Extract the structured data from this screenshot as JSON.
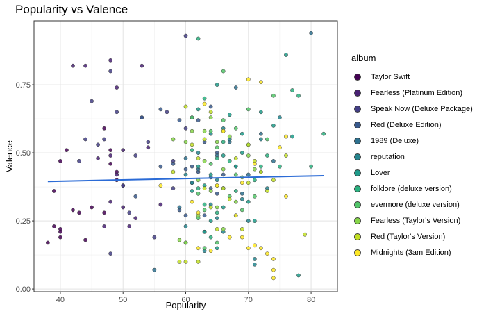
{
  "chart_data": {
    "type": "scatter",
    "title": "Popularity vs Valence",
    "xlabel": "Popularity",
    "ylabel": "Valence",
    "xlim": [
      35.8,
      84.2
    ],
    "ylim": [
      -0.01,
      0.985
    ],
    "xticks": [
      40,
      50,
      60,
      70,
      80
    ],
    "yticks": [
      0.0,
      0.25,
      0.5,
      0.75
    ],
    "ytick_labels": [
      "0.00",
      "0.25",
      "0.50",
      "0.75"
    ],
    "grid": true,
    "legend_title": "album",
    "legend_position": "right",
    "trend_line": {
      "x": [
        38,
        82
      ],
      "y": [
        0.395,
        0.416
      ],
      "color": "#2b6bd6"
    },
    "series": [
      {
        "name": "Taylor Swift",
        "color": "#440154",
        "points": [
          [
            38,
            0.17
          ],
          [
            39,
            0.36
          ],
          [
            39,
            0.23
          ],
          [
            40,
            0.21
          ],
          [
            40,
            0.19
          ],
          [
            40,
            0.22
          ],
          [
            40,
            0.47
          ],
          [
            41,
            0.51
          ],
          [
            42,
            0.29
          ],
          [
            43,
            0.28
          ],
          [
            44,
            0.18
          ],
          [
            45,
            0.3
          ],
          [
            47,
            0.59
          ],
          [
            47,
            0.28
          ],
          [
            48,
            0.51
          ],
          [
            48,
            0.46
          ],
          [
            49,
            0.43
          ],
          [
            49,
            0.4
          ]
        ]
      },
      {
        "name": "Fearless (Platinum Edition)",
        "color": "#482173",
        "points": [
          [
            42,
            0.82
          ],
          [
            44,
            0.82
          ],
          [
            46,
            0.48
          ],
          [
            47,
            0.23
          ],
          [
            48,
            0.84
          ],
          [
            48,
            0.49
          ],
          [
            48,
            0.32
          ],
          [
            49,
            0.42
          ],
          [
            49,
            0.74
          ],
          [
            50,
            0.51
          ],
          [
            50,
            0.38
          ],
          [
            50,
            0.3
          ],
          [
            53,
            0.82
          ],
          [
            51,
            0.23
          ],
          [
            52,
            0.26
          ],
          [
            54,
            0.52
          ],
          [
            56,
            0.31
          ]
        ]
      },
      {
        "name": "Speak Now (Deluxe Package)",
        "color": "#433e85",
        "points": [
          [
            43,
            0.47
          ],
          [
            44,
            0.55
          ],
          [
            45,
            0.69
          ],
          [
            46,
            0.53
          ],
          [
            47,
            0.55
          ],
          [
            48,
            0.8
          ],
          [
            48,
            0.13
          ],
          [
            49,
            0.65
          ],
          [
            50,
            0.38
          ],
          [
            51,
            0.28
          ],
          [
            52,
            0.49
          ],
          [
            53,
            0.63
          ],
          [
            54,
            0.54
          ],
          [
            55,
            0.19
          ],
          [
            60,
            0.93
          ],
          [
            57,
            0.65
          ],
          [
            58,
            0.37
          ],
          [
            58,
            0.47
          ],
          [
            60,
            0.59
          ]
        ]
      },
      {
        "name": "Red (Deluxe Edition)",
        "color": "#38598c",
        "points": [
          [
            52,
            0.34
          ],
          [
            53,
            0.63
          ],
          [
            56,
            0.66
          ],
          [
            56,
            0.45
          ],
          [
            58,
            0.46
          ],
          [
            59,
            0.62
          ],
          [
            59,
            0.29
          ],
          [
            60,
            0.44
          ],
          [
            60,
            0.27
          ],
          [
            61,
            0.63
          ],
          [
            61,
            0.45
          ],
          [
            62,
            0.62
          ],
          [
            62,
            0.43
          ],
          [
            63,
            0.54
          ],
          [
            63,
            0.27
          ],
          [
            64,
            0.37
          ],
          [
            64,
            0.67
          ],
          [
            65,
            0.5
          ],
          [
            65,
            0.35
          ],
          [
            66,
            0.42
          ]
        ]
      },
      {
        "name": "1989 (Deluxe)",
        "color": "#2d708e",
        "points": [
          [
            55,
            0.07
          ],
          [
            59,
            0.3
          ],
          [
            60,
            0.48
          ],
          [
            61,
            0.39
          ],
          [
            62,
            0.44
          ],
          [
            63,
            0.21
          ],
          [
            64,
            0.41
          ],
          [
            65,
            0.49
          ],
          [
            66,
            0.37
          ],
          [
            67,
            0.54
          ],
          [
            68,
            0.45
          ],
          [
            68,
            0.74
          ],
          [
            69,
            0.35
          ],
          [
            70,
            0.42
          ],
          [
            72,
            0.57
          ],
          [
            74,
            0.47
          ],
          [
            80,
            0.94
          ]
        ]
      },
      {
        "name": "reputation",
        "color": "#25858e",
        "points": [
          [
            60,
            0.42
          ],
          [
            60,
            0.23
          ],
          [
            61,
            0.39
          ],
          [
            62,
            0.5
          ],
          [
            63,
            0.14
          ],
          [
            64,
            0.31
          ],
          [
            64,
            0.57
          ],
          [
            65,
            0.26
          ],
          [
            65,
            0.4
          ],
          [
            66,
            0.21
          ],
          [
            66,
            0.59
          ],
          [
            67,
            0.55
          ],
          [
            68,
            0.27
          ],
          [
            69,
            0.33
          ],
          [
            70,
            0.25
          ],
          [
            71,
            0.11
          ],
          [
            71,
            0.09
          ],
          [
            72,
            0.43
          ],
          [
            72,
            0.55
          ],
          [
            73,
            0.37
          ],
          [
            75,
            0.63
          ]
        ]
      },
      {
        "name": "Lover",
        "color": "#1e9b8a",
        "points": [
          [
            61,
            0.36
          ],
          [
            62,
            0.45
          ],
          [
            62,
            0.66
          ],
          [
            63,
            0.21
          ],
          [
            63,
            0.38
          ],
          [
            64,
            0.42
          ],
          [
            64,
            0.25
          ],
          [
            65,
            0.15
          ],
          [
            65,
            0.75
          ],
          [
            66,
            0.49
          ],
          [
            66,
            0.3
          ],
          [
            67,
            0.64
          ],
          [
            68,
            0.45
          ],
          [
            69,
            0.5
          ],
          [
            69,
            0.57
          ],
          [
            70,
            0.32
          ],
          [
            71,
            0.25
          ],
          [
            72,
            0.65
          ],
          [
            74,
            0.6
          ],
          [
            76,
            0.86
          ],
          [
            77,
            0.56
          ],
          [
            78,
            0.05
          ]
        ]
      },
      {
        "name": "folklore (deluxe version)",
        "color": "#2ab07f",
        "points": [
          [
            61,
            0.51
          ],
          [
            62,
            0.92
          ],
          [
            62,
            0.37
          ],
          [
            63,
            0.7
          ],
          [
            63,
            0.31
          ],
          [
            64,
            0.19
          ],
          [
            65,
            0.48
          ],
          [
            65,
            0.28
          ],
          [
            66,
            0.54
          ],
          [
            67,
            0.47
          ],
          [
            68,
            0.36
          ],
          [
            70,
            0.53
          ],
          [
            71,
            0.4
          ],
          [
            72,
            0.45
          ],
          [
            73,
            0.49
          ],
          [
            75,
            0.45
          ],
          [
            77,
            0.73
          ],
          [
            78,
            0.71
          ],
          [
            80,
            0.45
          ],
          [
            82,
            0.57
          ]
        ]
      },
      {
        "name": "evermore (deluxe version)",
        "color": "#52c569",
        "points": [
          [
            60,
            0.17
          ],
          [
            61,
            0.63
          ],
          [
            62,
            0.35
          ],
          [
            62,
            0.26
          ],
          [
            63,
            0.15
          ],
          [
            63,
            0.29
          ],
          [
            64,
            0.58
          ],
          [
            64,
            0.46
          ],
          [
            65,
            0.17
          ],
          [
            65,
            0.52
          ],
          [
            66,
            0.8
          ],
          [
            66,
            0.62
          ],
          [
            67,
            0.34
          ],
          [
            68,
            0.42
          ],
          [
            68,
            0.59
          ],
          [
            69,
            0.29
          ],
          [
            70,
            0.66
          ],
          [
            71,
            0.34
          ],
          [
            73,
            0.55
          ],
          [
            74,
            0.71
          ]
        ]
      },
      {
        "name": "Fearless (Taylor's Version)",
        "color": "#86d549",
        "points": [
          [
            58,
            0.55
          ],
          [
            59,
            0.18
          ],
          [
            60,
            0.17
          ],
          [
            60,
            0.54
          ],
          [
            61,
            0.58
          ],
          [
            62,
            0.4
          ],
          [
            62,
            0.27
          ],
          [
            63,
            0.58
          ],
          [
            63,
            0.47
          ],
          [
            64,
            0.36
          ],
          [
            64,
            0.63
          ],
          [
            65,
            0.3
          ],
          [
            65,
            0.54
          ],
          [
            66,
            0.44
          ],
          [
            66,
            0.22
          ],
          [
            67,
            0.56
          ],
          [
            68,
            0.32
          ],
          [
            69,
            0.41
          ],
          [
            70,
            0.49
          ],
          [
            71,
            0.44
          ]
        ]
      },
      {
        "name": "Red (Taylor's Version)",
        "color": "#c2df23",
        "points": [
          [
            58,
            0.43
          ],
          [
            59,
            0.1
          ],
          [
            60,
            0.1
          ],
          [
            60,
            0.67
          ],
          [
            61,
            0.53
          ],
          [
            62,
            0.48
          ],
          [
            62,
            0.1
          ],
          [
            63,
            0.37
          ],
          [
            63,
            0.55
          ],
          [
            64,
            0.65
          ],
          [
            64,
            0.3
          ],
          [
            65,
            0.38
          ],
          [
            65,
            0.22
          ],
          [
            66,
            0.58
          ],
          [
            66,
            0.37
          ],
          [
            67,
            0.33
          ],
          [
            68,
            0.48
          ],
          [
            69,
            0.22
          ],
          [
            70,
            0.39
          ],
          [
            70,
            0.53
          ],
          [
            71,
            0.47
          ],
          [
            72,
            0.43
          ],
          [
            73,
            0.36
          ],
          [
            74,
            0.4
          ],
          [
            76,
            0.49
          ],
          [
            79,
            0.2
          ]
        ]
      },
      {
        "name": "Midnights (3am Edition)",
        "color": "#fde725",
        "points": [
          [
            56,
            0.38
          ],
          [
            61,
            0.32
          ],
          [
            62,
            0.28
          ],
          [
            62,
            0.15
          ],
          [
            63,
            0.68
          ],
          [
            64,
            0.14
          ],
          [
            65,
            0.38
          ],
          [
            66,
            0.58
          ],
          [
            67,
            0.19
          ],
          [
            68,
            0.27
          ],
          [
            69,
            0.19
          ],
          [
            69,
            0.39
          ],
          [
            70,
            0.77
          ],
          [
            70,
            0.15
          ],
          [
            71,
            0.16
          ],
          [
            71,
            0.46
          ],
          [
            72,
            0.15
          ],
          [
            72,
            0.76
          ],
          [
            73,
            0.13
          ],
          [
            74,
            0.11
          ],
          [
            74,
            0.07
          ],
          [
            74,
            0.04
          ],
          [
            75,
            0.52
          ],
          [
            76,
            0.56
          ],
          [
            76,
            0.34
          ]
        ]
      }
    ]
  }
}
